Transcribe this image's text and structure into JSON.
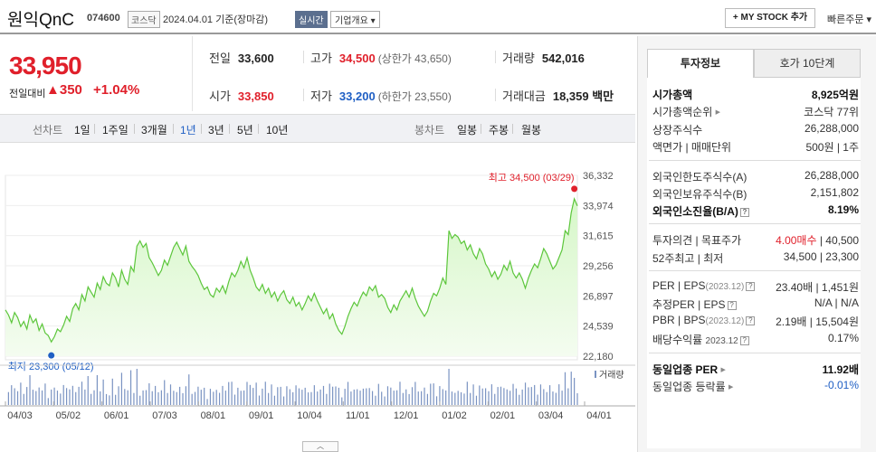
{
  "header": {
    "name": "원익QnC",
    "code": "074600",
    "market": "코스닥",
    "date": "2024.04.01 기준(장마감)",
    "realtime": "실시간",
    "company_info": "기업개요 ▾",
    "mystock": "+ MY STOCK 추가",
    "quick_order": "빠른주문 ▾"
  },
  "price": {
    "current": "33,950",
    "diff_label": "전일대비",
    "diff": "▲350",
    "pct": "+1.04%"
  },
  "summary": {
    "prev_label": "전일",
    "prev": "33,600",
    "high_label": "고가",
    "high": "34,500",
    "upper": "(상한가 43,650)",
    "vol_label": "거래량",
    "vol": "542,016",
    "open_label": "시가",
    "open": "33,850",
    "low_label": "저가",
    "low": "33,200",
    "lower": "(하한가 23,550)",
    "amount_label": "거래대금",
    "amount": "18,359 백만"
  },
  "period": {
    "line_label": "선차트",
    "items": [
      "1일",
      "1주일",
      "3개월",
      "1년",
      "3년",
      "5년",
      "10년"
    ],
    "active": "1년",
    "candle_label": "봉차트",
    "candle_items": [
      "일봉",
      "주봉",
      "월봉"
    ]
  },
  "chart_data": {
    "type": "line",
    "x_ticks": [
      "04/03",
      "05/02",
      "06/01",
      "07/03",
      "08/01",
      "09/01",
      "10/04",
      "11/01",
      "12/01",
      "01/02",
      "02/01",
      "03/04",
      "04/01"
    ],
    "y_ticks": [
      36332,
      33974,
      31615,
      29256,
      26897,
      24539,
      22180
    ],
    "ylim": [
      22180,
      36332
    ],
    "max_label": "최고 34,500 (03/29)",
    "min_label": "최저 23,300 (05/12)",
    "volume_label": "거래량",
    "values": [
      25800,
      25400,
      24800,
      25600,
      25200,
      24500,
      24900,
      24300,
      25400,
      24800,
      25100,
      24200,
      24700,
      24000,
      23800,
      23300,
      23700,
      24300,
      24100,
      24600,
      25300,
      24900,
      25900,
      26300,
      25800,
      27000,
      26500,
      27600,
      27200,
      26800,
      27900,
      27400,
      28400,
      27900,
      27700,
      28700,
      28300,
      27600,
      28900,
      28200,
      27800,
      29200,
      28800,
      30800,
      31200,
      30700,
      31000,
      29900,
      29500,
      29000,
      28500,
      28900,
      29700,
      29300,
      30000,
      30700,
      31100,
      30600,
      30100,
      30800,
      29600,
      29200,
      28900,
      28500,
      27900,
      27400,
      27600,
      27000,
      26800,
      27500,
      27200,
      27700,
      27100,
      28000,
      28700,
      28400,
      28900,
      29600,
      29100,
      29900,
      28900,
      28300,
      27600,
      27300,
      27800,
      27100,
      27500,
      26800,
      27200,
      26500,
      27000,
      27300,
      26600,
      26300,
      26800,
      26100,
      26400,
      25800,
      26300,
      26900,
      26500,
      27100,
      26500,
      26000,
      25500,
      25900,
      25100,
      25500,
      24700,
      24200,
      23900,
      24500,
      25300,
      25900,
      26400,
      26100,
      26700,
      27200,
      26900,
      27600,
      27300,
      27700,
      26800,
      27000,
      26700,
      26000,
      25600,
      26200,
      25800,
      26500,
      26900,
      27300,
      26800,
      27500,
      26700,
      26100,
      25700,
      25300,
      25700,
      26500,
      27100,
      26900,
      27500,
      28300,
      27800,
      32000,
      31400,
      31700,
      31500,
      31000,
      31200,
      30500,
      30900,
      30200,
      29800,
      30600,
      30200,
      29400,
      29000,
      28400,
      28800,
      28200,
      28600,
      29300,
      28900,
      29600,
      28700,
      28300,
      28700,
      28200,
      27500,
      28300,
      28900,
      29400,
      29100,
      29800,
      30600,
      30200,
      29600,
      29000,
      29300,
      29900,
      30500,
      32000,
      31700,
      33400,
      34500,
      33950
    ]
  },
  "right": {
    "tab_active": "투자정보",
    "tab_other": "호가 10단계",
    "rows1": [
      {
        "l": "시가총액",
        "r": "8,925억원"
      },
      {
        "l": "시가총액순위",
        "r": "코스닥 77위"
      },
      {
        "l": "상장주식수",
        "r": "26,288,000"
      },
      {
        "l": "액면가 | 매매단위",
        "r": "500원 | 1주"
      }
    ],
    "rows2": [
      {
        "l": "외국인한도주식수(A)",
        "r": "26,288,000"
      },
      {
        "l": "외국인보유주식수(B)",
        "r": "2,151,802"
      },
      {
        "l": "외국인소진율(B/A)",
        "r": "8.19%"
      }
    ],
    "opinion_label": "투자의견 | 목표주가",
    "opinion_val": "4.00매수",
    "target": "40,500",
    "week52_label": "52주최고 | 최저",
    "week52_val": "34,500 | 23,300",
    "per_label": "PER | EPS",
    "per_year": "(2023.12)",
    "per_val": "23.40배 | 1,451원",
    "est_label": "추정PER | EPS",
    "est_val": "N/A | N/A",
    "pbr_label": "PBR | BPS",
    "pbr_year": "(2023.12)",
    "pbr_val": "2.19배 | 15,504원",
    "div_label": "배당수익률",
    "div_year": "2023.12",
    "div_val": "0.17%",
    "sector_per_label": "동일업종 PER",
    "sector_per_val": "11.92배",
    "sector_rate_label": "동일업종 등락률",
    "sector_rate_val": "-0.01%"
  }
}
